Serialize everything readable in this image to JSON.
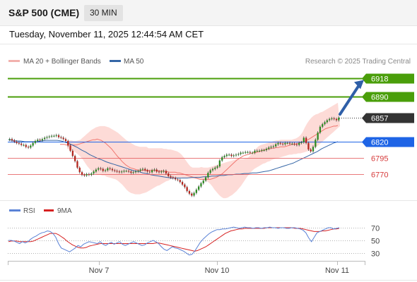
{
  "header": {
    "title": "S&P 500 (CME)",
    "timeframe": "30 MIN"
  },
  "datetime": "Tuesday, November 11, 2025 12:44:54 AM CET",
  "legend": {
    "ma20": "MA 20 + Bollinger Bands",
    "ma50": "MA 50",
    "copyright": "Research © 2025 Trading Central"
  },
  "colors": {
    "green": "#4a9e0a",
    "blue": "#1e64e6",
    "red": "#e4585a",
    "dark": "#333333",
    "band": "#fcd2cd",
    "ma20": "#f0766f",
    "ma50": "#3566a6",
    "rsi": "#5a82d6",
    "rsi_ma": "#d62020"
  },
  "chart_data": [
    {
      "type": "candlestick",
      "x_ticks": [
        "Nov 7",
        "Nov 10",
        "Nov 11"
      ],
      "ylim": [
        6732,
        6934
      ],
      "levels": [
        {
          "value": 6918,
          "label": "6918",
          "kind": "resistance"
        },
        {
          "value": 6890,
          "label": "6890",
          "kind": "resistance"
        },
        {
          "value": 6857,
          "label": "6857",
          "kind": "last"
        },
        {
          "value": 6820,
          "label": "6820",
          "kind": "pivot"
        },
        {
          "value": 6795,
          "label": "6795",
          "kind": "support"
        },
        {
          "value": 6770,
          "label": "6770",
          "kind": "support"
        }
      ],
      "close": [
        6824,
        6822,
        6820,
        6818,
        6817,
        6815,
        6815,
        6812,
        6811,
        6814,
        6818,
        6821,
        6823,
        6822,
        6824,
        6826,
        6827,
        6828,
        6829,
        6829,
        6830,
        6827,
        6826,
        6824,
        6821,
        6814,
        6806,
        6798,
        6790,
        6780,
        6773,
        6769,
        6768,
        6770,
        6769,
        6771,
        6774,
        6777,
        6779,
        6778,
        6775,
        6776,
        6779,
        6778,
        6776,
        6775,
        6774,
        6773,
        6774,
        6775,
        6775,
        6774,
        6772,
        6773,
        6774,
        6775,
        6777,
        6778,
        6776,
        6774,
        6773,
        6776,
        6777,
        6774,
        6773,
        6774,
        6775,
        6771,
        6767,
        6765,
        6764,
        6762,
        6761,
        6758,
        6754,
        6750,
        6744,
        6740,
        6737,
        6741,
        6746,
        6751,
        6756,
        6760,
        6765,
        6772,
        6776,
        6778,
        6780,
        6782,
        6791,
        6796,
        6798,
        6800,
        6800,
        6798,
        6799,
        6800,
        6801,
        6803,
        6803,
        6804,
        6804,
        6803,
        6803,
        6806,
        6806,
        6806,
        6807,
        6807,
        6809,
        6811,
        6812,
        6813,
        6816,
        6818,
        6817,
        6816,
        6818,
        6818,
        6817,
        6817,
        6816,
        6815,
        6818,
        6819,
        6826,
        6818,
        6808,
        6805,
        6812,
        6823,
        6834,
        6843,
        6847,
        6850,
        6853,
        6855,
        6856,
        6855,
        6853,
        6857
      ],
      "ma20": [
        6816,
        6816,
        6816,
        6815,
        6815,
        6815,
        6815,
        6815,
        6815,
        6816,
        6817,
        6818,
        6819,
        6820,
        6821,
        6822,
        6823,
        6823,
        6824,
        6823,
        6822,
        6820,
        6818,
        6815,
        6812,
        6809,
        6805,
        6801,
        6797,
        6794,
        6790,
        6787,
        6784,
        6782,
        6780,
        6779,
        6778,
        6777,
        6776,
        6776,
        6776,
        6776,
        6776,
        6776,
        6776,
        6776,
        6776,
        6775,
        6775,
        6775,
        6775,
        6774,
        6774,
        6773,
        6773,
        6773,
        6773,
        6772,
        6772,
        6771,
        6770,
        6769,
        6768,
        6767,
        6766,
        6765,
        6764,
        6763,
        6762,
        6762,
        6762,
        6762,
        6762,
        6762,
        6763,
        6764,
        6765,
        6767,
        6769,
        6771,
        6774,
        6777,
        6780,
        6783,
        6786,
        6789,
        6792,
        6794,
        6796,
        6798,
        6799,
        6800,
        6801,
        6802,
        6803,
        6803,
        6804,
        6805,
        6806,
        6807,
        6808,
        6809,
        6809,
        6810,
        6810,
        6811,
        6811,
        6812,
        6812,
        6812,
        6813,
        6814,
        6815,
        6816,
        6816,
        6817,
        6818,
        6819,
        6820,
        6821,
        6822,
        6824,
        6826,
        6828,
        6830,
        6832,
        6834,
        6836,
        6838,
        6840,
        6841,
        6842,
        6843,
        6844,
        6844,
        6845
      ],
      "band_upper": [
        6822,
        6822,
        6822,
        6821,
        6821,
        6822,
        6823,
        6826,
        6829,
        6832,
        6835,
        6838,
        6840,
        6842,
        6843,
        6844,
        6844,
        6844,
        6843,
        6842,
        6840,
        6838,
        6836,
        6834,
        6831,
        6828,
        6825,
        6822,
        6820,
        6818,
        6816,
        6814,
        6813,
        6812,
        6812,
        6812,
        6812,
        6810,
        6810,
        6810,
        6810,
        6810,
        6810,
        6810,
        6809,
        6809,
        6808,
        6808,
        6807,
        6806,
        6805,
        6803,
        6800,
        6796,
        6791,
        6786,
        6782,
        6780,
        6780,
        6780,
        6780,
        6781,
        6780,
        6780,
        6780,
        6781,
        6782,
        6783,
        6784,
        6785,
        6786,
        6787,
        6788,
        6789,
        6790,
        6791,
        6792,
        6793,
        6793,
        6793,
        6793,
        6794,
        6795,
        6798,
        6802,
        6806,
        6810,
        6813,
        6815,
        6816,
        6817,
        6818,
        6819,
        6820,
        6821,
        6822,
        6822,
        6823,
        6823,
        6823,
        6823,
        6823,
        6823,
        6824,
        6825,
        6827,
        6830,
        6835,
        6842,
        6848,
        6853,
        6857,
        6860,
        6862,
        6863,
        6865,
        6866,
        6868,
        6870,
        6872,
        6874,
        6876,
        6878,
        6880
      ],
      "band_lower": [
        6809,
        6808,
        6807,
        6805,
        6803,
        6800,
        6797,
        6793,
        6788,
        6783,
        6779,
        6775,
        6772,
        6770,
        6769,
        6769,
        6768,
        6768,
        6766,
        6765,
        6764,
        6763,
        6762,
        6760,
        6757,
        6754,
        6750,
        6746,
        6743,
        6741,
        6740,
        6739,
        6739,
        6739,
        6740,
        6741,
        6742,
        6744,
        6746,
        6748,
        6750,
        6752,
        6753,
        6755,
        6757,
        6759,
        6760,
        6762,
        6763,
        6764,
        6765,
        6765,
        6765,
        6764,
        6764,
        6764,
        6763,
        6763,
        6763,
        6763,
        6763,
        6762,
        6761,
        6760,
        6758,
        6755,
        6751,
        6746,
        6742,
        6738,
        6735,
        6733,
        6733,
        6734,
        6736,
        6738,
        6741,
        6744,
        6748,
        6752,
        6757,
        6762,
        6767,
        6771,
        6775,
        6778,
        6780,
        6782,
        6784,
        6786,
        6787,
        6789,
        6790,
        6792,
        6793,
        6794,
        6795,
        6796,
        6797,
        6798,
        6799,
        6800,
        6800,
        6801,
        6801,
        6802,
        6802,
        6803,
        6804,
        6805,
        6806,
        6808,
        6810,
        6812,
        6814,
        6817,
        6820,
        6823,
        6826,
        6829,
        6832,
        6835,
        6838,
        6841,
        6844
      ],
      "ma50": [
        6823,
        6822,
        6821,
        6821,
        6820,
        6820,
        6820,
        6820,
        6821,
        6822,
        6822,
        6822,
        6822,
        6821,
        6819,
        6817,
        6814,
        6811,
        6807,
        6804,
        6800,
        6797,
        6794,
        6792,
        6789,
        6787,
        6785,
        6783,
        6781,
        6779,
        6777,
        6775,
        6774,
        6772,
        6771,
        6769,
        6768,
        6767,
        6766,
        6765,
        6764,
        6764,
        6764,
        6764,
        6764,
        6765,
        6765,
        6765,
        6766,
        6766,
        6767,
        6767,
        6768,
        6768,
        6769,
        6769,
        6770,
        6770,
        6771,
        6771,
        6772,
        6772,
        6773,
        6774,
        6775,
        6777,
        6779,
        6781,
        6783,
        6785,
        6787,
        6790,
        6793,
        6796,
        6799,
        6802,
        6805,
        6809,
        6812,
        6815,
        6818,
        6820
      ],
      "arrow": {
        "from": [
          6860,
          0.62
        ],
        "to": [
          6913,
          0.91
        ]
      }
    },
    {
      "type": "line",
      "legend": [
        "RSI",
        "9MA"
      ],
      "y_ticks": [
        70,
        50,
        30
      ],
      "ylim": [
        20,
        80
      ],
      "rsi": [
        50,
        50,
        49,
        47,
        45,
        48,
        46,
        48,
        52,
        55,
        57,
        60,
        62,
        63,
        65,
        64,
        61,
        55,
        45,
        38,
        36,
        34,
        32,
        35,
        38,
        42,
        40,
        44,
        46,
        48,
        47,
        46,
        45,
        48,
        44,
        42,
        45,
        47,
        44,
        46,
        48,
        44,
        42,
        44,
        46,
        48,
        46,
        44,
        42,
        43,
        46,
        48,
        50,
        48,
        45,
        40,
        36,
        34,
        37,
        40,
        38,
        37,
        35,
        33,
        30,
        27,
        28,
        33,
        40,
        47,
        52,
        56,
        60,
        63,
        65,
        67,
        67,
        68,
        68,
        69,
        70,
        71,
        70,
        69,
        70,
        71,
        70,
        70,
        69,
        70,
        70,
        69,
        70,
        70,
        71,
        70,
        70,
        69,
        70,
        70,
        69,
        69,
        70,
        70,
        69,
        68,
        66,
        62,
        54,
        48,
        55,
        62,
        64,
        66,
        68,
        70,
        70,
        68,
        69,
        70
      ],
      "ma": [
        48,
        49,
        49,
        49,
        48,
        48,
        48,
        48,
        48,
        49,
        51,
        53,
        55,
        57,
        59,
        61,
        61,
        61,
        59,
        56,
        53,
        49,
        46,
        43,
        41,
        39,
        38,
        38,
        39,
        41,
        42,
        43,
        44,
        45,
        45,
        45,
        45,
        45,
        45,
        45,
        45,
        45,
        45,
        45,
        45,
        45,
        45,
        45,
        45,
        45,
        45,
        45,
        45,
        46,
        46,
        45,
        44,
        43,
        42,
        41,
        40,
        39,
        38,
        37,
        36,
        35,
        34,
        33,
        34,
        36,
        38,
        40,
        43,
        46,
        49,
        52,
        55,
        58,
        61,
        63,
        65,
        66,
        67,
        68,
        68,
        69,
        69,
        69,
        69,
        69,
        69,
        69,
        69,
        70,
        70,
        70,
        70,
        70,
        70,
        70,
        70,
        70,
        70,
        69,
        69,
        69,
        68,
        67,
        66,
        65,
        64,
        64,
        64,
        65,
        65,
        66,
        67,
        68,
        68,
        69
      ]
    }
  ]
}
